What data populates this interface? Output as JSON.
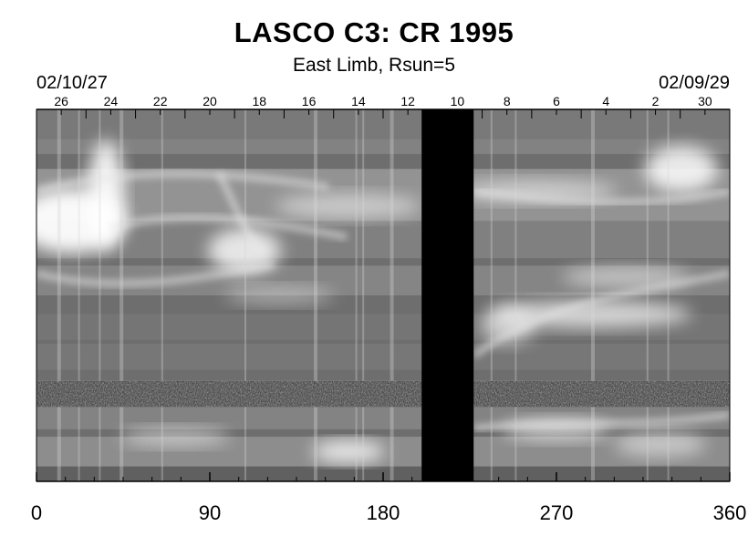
{
  "chart_data": {
    "type": "heatmap",
    "title": "LASCO C3: CR 1995",
    "subtitle": "East Limb, Rsun=5",
    "start_date_label": "02/10/27",
    "end_date_label": "02/09/29",
    "x_ticks": [
      0,
      90,
      180,
      270,
      360
    ],
    "xlim": [
      0,
      360
    ],
    "top_day_labels": [
      "26",
      "24",
      "22",
      "20",
      "18",
      "16",
      "14",
      "12",
      "10",
      "8",
      "6",
      "4",
      "2",
      "30"
    ],
    "data_gap_x_range": [
      200,
      227
    ],
    "noise_band_fraction": 0.77,
    "colormap": "grayscale",
    "colors": {
      "gap": "#000000",
      "background": "#ffffff"
    }
  }
}
